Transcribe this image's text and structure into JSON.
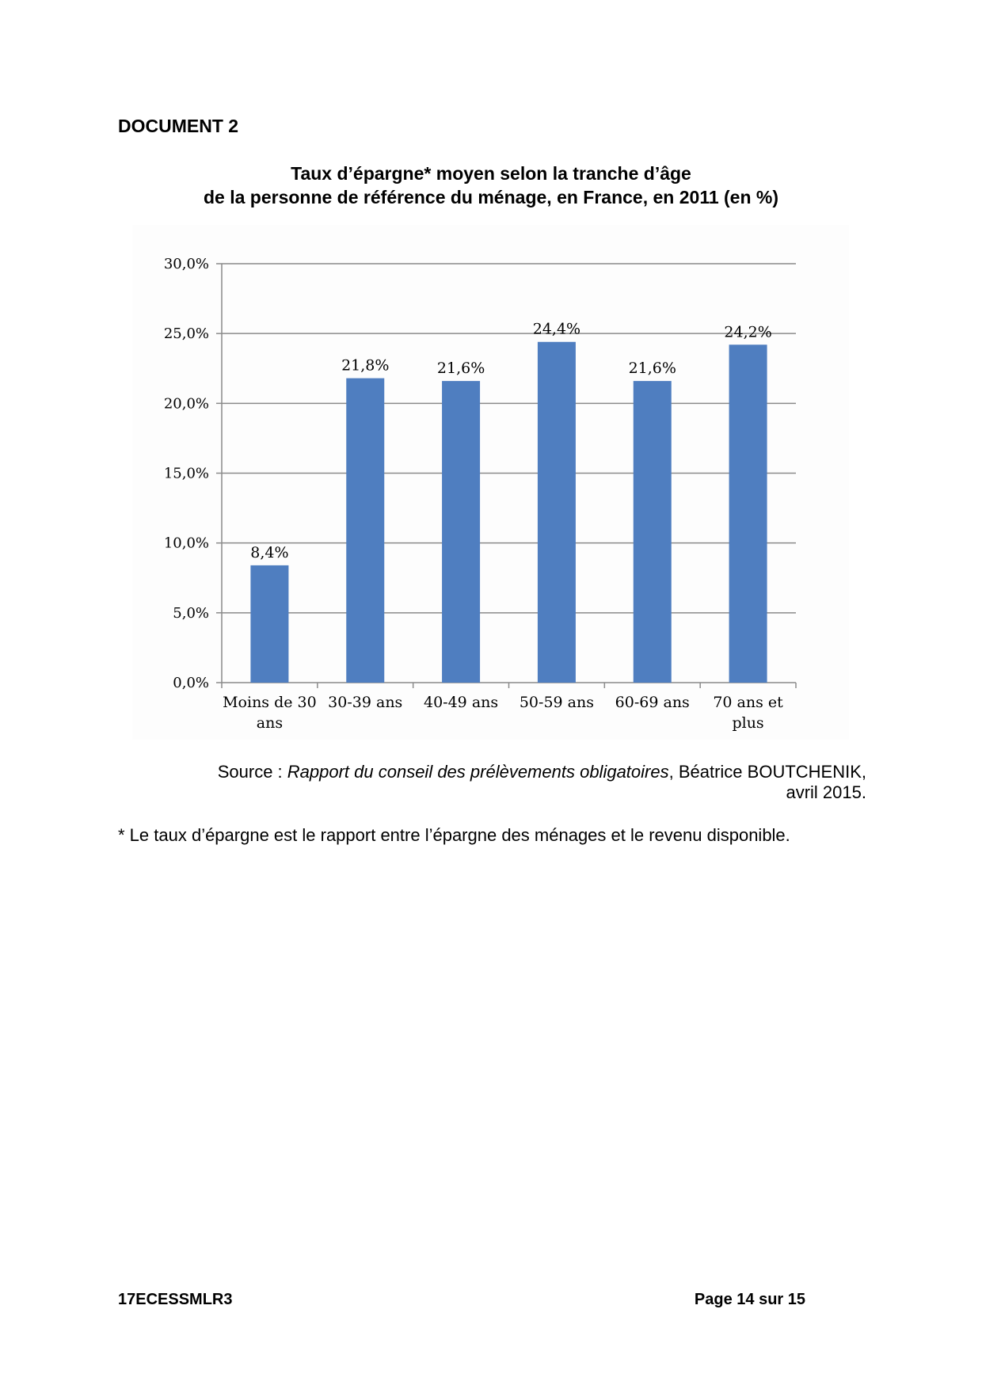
{
  "document": {
    "label": "DOCUMENT 2",
    "title_line1": "Taux d’épargne* moyen selon la tranche d’âge",
    "title_line2": "de la personne de référence du ménage, en France, en 2011 (en %)",
    "source_prefix": "Source : ",
    "source_title": "Rapport du conseil des prélèvements obligatoires",
    "source_rest": ", Béatrice BOUTCHENIK,",
    "source_date": "avril 2015.",
    "note": "* Le taux d’épargne est le rapport entre l’épargne des ménages et le revenu disponible."
  },
  "footer": {
    "code": "17ECESSMLR3",
    "page": "Page 14 sur 15"
  },
  "chart_data": {
    "type": "bar",
    "categories": [
      [
        "Moins de 30",
        "ans"
      ],
      [
        "30-39 ans"
      ],
      [
        "40-49 ans"
      ],
      [
        "50-59 ans"
      ],
      [
        "60-69 ans"
      ],
      [
        "70 ans et",
        "plus"
      ]
    ],
    "values": [
      8.4,
      21.8,
      21.6,
      24.4,
      21.6,
      24.2
    ],
    "data_labels": [
      "8,4%",
      "21,8%",
      "21,6%",
      "24,4%",
      "21,6%",
      "24,2%"
    ],
    "ylim": [
      0,
      30
    ],
    "yticks": [
      0,
      5,
      10,
      15,
      20,
      25,
      30
    ],
    "ytick_labels": [
      "0,0%",
      "5,0%",
      "10,0%",
      "15,0%",
      "20,0%",
      "25,0%",
      "30,0%"
    ],
    "grid": true,
    "bar_color": "#4F7EC0",
    "xlabel": "",
    "ylabel": ""
  }
}
